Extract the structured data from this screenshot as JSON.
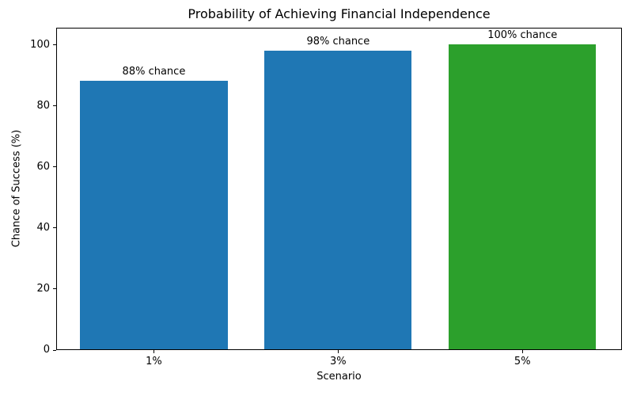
{
  "chart_data": {
    "type": "bar",
    "title": "Probability of Achieving Financial Independence",
    "xlabel": "Scenario",
    "ylabel": "Chance of Success (%)",
    "categories": [
      "1%",
      "3%",
      "5%"
    ],
    "values": [
      88,
      98,
      100
    ],
    "bar_labels": [
      "88% chance",
      "98% chance",
      "100% chance"
    ],
    "bar_colors": [
      "#1f77b4",
      "#1f77b4",
      "#2ca02c"
    ],
    "yticks": [
      0,
      20,
      40,
      60,
      80,
      100
    ],
    "ylim": [
      0,
      105.7
    ],
    "xlim": [
      -0.53,
      2.54
    ],
    "bar_width": 0.8,
    "grid": false,
    "legend": "none",
    "colors": {
      "blue_bar": "#1f77b4",
      "green_bar": "#2ca02c",
      "axis": "#000000",
      "background": "#ffffff"
    }
  }
}
